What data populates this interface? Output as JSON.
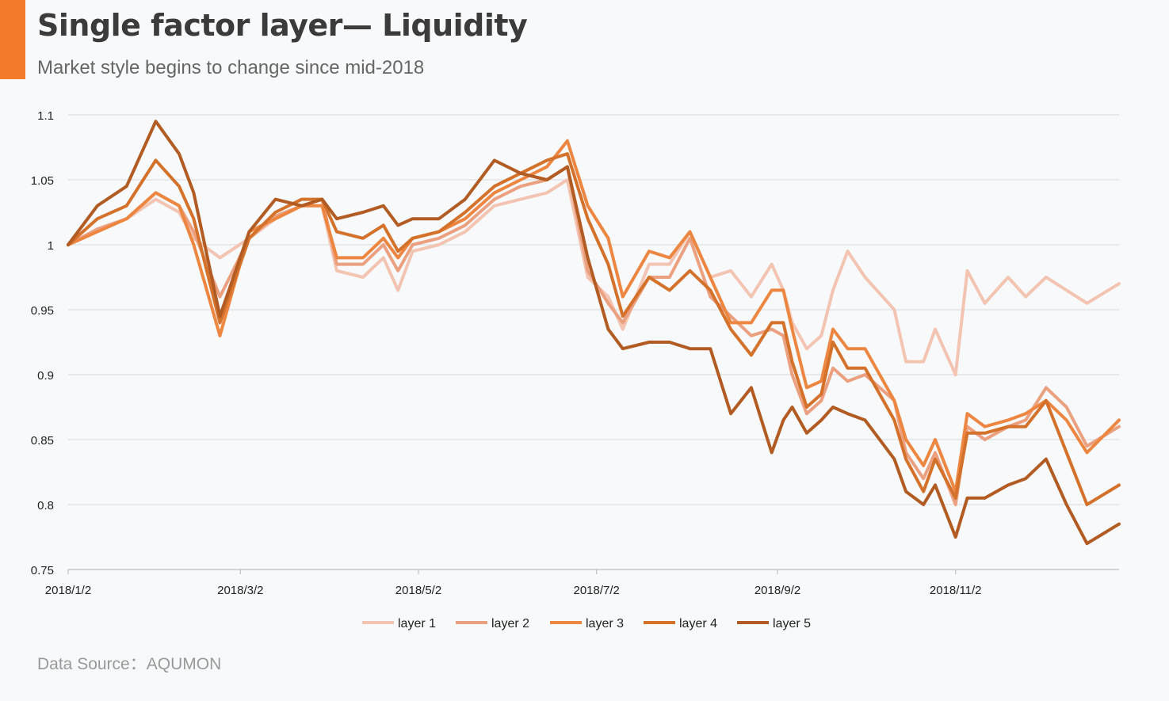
{
  "header": {
    "title": "Single factor layer— Liquidity",
    "subtitle": "Market style begins to change since mid-2018"
  },
  "footer": {
    "source": "Data Source：AQUMON"
  },
  "chart_data": {
    "type": "line",
    "title": "Single factor layer— Liquidity",
    "subtitle": "Market style begins to change since mid-2018",
    "xlabel": "",
    "ylabel": "",
    "x_range": [
      "2018-01-02",
      "2018-12-28"
    ],
    "ylim": [
      0.75,
      1.1
    ],
    "yticks": [
      0.75,
      0.8,
      0.85,
      0.9,
      0.95,
      1,
      1.05,
      1.1
    ],
    "ytick_labels": [
      "0.75",
      "0.8",
      "0.85",
      "0.9",
      "0.95",
      "1",
      "1.05",
      "1.1"
    ],
    "xticks": [
      "2018-01-02",
      "2018-03-02",
      "2018-05-02",
      "2018-07-02",
      "2018-09-02",
      "2018-11-02"
    ],
    "xtick_labels": [
      "2018/1/2",
      "2018/3/2",
      "2018/5/2",
      "2018/7/2",
      "2018/9/2",
      "2018/11/2"
    ],
    "grid": "horizontal",
    "legend": "bottom",
    "series": [
      {
        "name": "layer 1",
        "color": "#f3c4b2",
        "points": [
          [
            "2018-01-02",
            1.0
          ],
          [
            "2018-01-12",
            1.012
          ],
          [
            "2018-01-22",
            1.02
          ],
          [
            "2018-02-01",
            1.035
          ],
          [
            "2018-02-09",
            1.025
          ],
          [
            "2018-02-14",
            1.005
          ],
          [
            "2018-02-23",
            0.99
          ],
          [
            "2018-03-05",
            1.005
          ],
          [
            "2018-03-14",
            1.02
          ],
          [
            "2018-03-23",
            1.03
          ],
          [
            "2018-03-30",
            1.03
          ],
          [
            "2018-04-04",
            0.98
          ],
          [
            "2018-04-13",
            0.975
          ],
          [
            "2018-04-20",
            0.99
          ],
          [
            "2018-04-25",
            0.965
          ],
          [
            "2018-04-30",
            0.995
          ],
          [
            "2018-05-09",
            1.0
          ],
          [
            "2018-05-18",
            1.01
          ],
          [
            "2018-05-28",
            1.03
          ],
          [
            "2018-06-06",
            1.035
          ],
          [
            "2018-06-15",
            1.04
          ],
          [
            "2018-06-22",
            1.05
          ],
          [
            "2018-06-29",
            0.975
          ],
          [
            "2018-07-06",
            0.96
          ],
          [
            "2018-07-11",
            0.935
          ],
          [
            "2018-07-20",
            0.985
          ],
          [
            "2018-07-27",
            0.985
          ],
          [
            "2018-08-03",
            1.01
          ],
          [
            "2018-08-10",
            0.975
          ],
          [
            "2018-08-17",
            0.98
          ],
          [
            "2018-08-24",
            0.96
          ],
          [
            "2018-08-31",
            0.985
          ],
          [
            "2018-09-04",
            0.965
          ],
          [
            "2018-09-07",
            0.94
          ],
          [
            "2018-09-12",
            0.92
          ],
          [
            "2018-09-17",
            0.93
          ],
          [
            "2018-09-21",
            0.965
          ],
          [
            "2018-09-26",
            0.995
          ],
          [
            "2018-10-02",
            0.975
          ],
          [
            "2018-10-12",
            0.95
          ],
          [
            "2018-10-16",
            0.91
          ],
          [
            "2018-10-22",
            0.91
          ],
          [
            "2018-10-26",
            0.935
          ],
          [
            "2018-11-02",
            0.9
          ],
          [
            "2018-11-06",
            0.98
          ],
          [
            "2018-11-12",
            0.955
          ],
          [
            "2018-11-20",
            0.975
          ],
          [
            "2018-11-26",
            0.96
          ],
          [
            "2018-12-03",
            0.975
          ],
          [
            "2018-12-10",
            0.965
          ],
          [
            "2018-12-17",
            0.955
          ],
          [
            "2018-12-28",
            0.97
          ]
        ]
      },
      {
        "name": "layer 2",
        "color": "#eba080",
        "points": [
          [
            "2018-01-02",
            1.0
          ],
          [
            "2018-01-12",
            1.012
          ],
          [
            "2018-01-22",
            1.02
          ],
          [
            "2018-02-01",
            1.04
          ],
          [
            "2018-02-09",
            1.03
          ],
          [
            "2018-02-14",
            1.01
          ],
          [
            "2018-02-23",
            0.96
          ],
          [
            "2018-03-05",
            1.005
          ],
          [
            "2018-03-14",
            1.022
          ],
          [
            "2018-03-23",
            1.03
          ],
          [
            "2018-03-30",
            1.035
          ],
          [
            "2018-04-04",
            0.985
          ],
          [
            "2018-04-13",
            0.985
          ],
          [
            "2018-04-20",
            1.0
          ],
          [
            "2018-04-25",
            0.98
          ],
          [
            "2018-04-30",
            1.0
          ],
          [
            "2018-05-09",
            1.005
          ],
          [
            "2018-05-18",
            1.015
          ],
          [
            "2018-05-28",
            1.035
          ],
          [
            "2018-06-06",
            1.045
          ],
          [
            "2018-06-15",
            1.05
          ],
          [
            "2018-06-22",
            1.06
          ],
          [
            "2018-06-29",
            0.98
          ],
          [
            "2018-07-06",
            0.955
          ],
          [
            "2018-07-11",
            0.94
          ],
          [
            "2018-07-20",
            0.975
          ],
          [
            "2018-07-27",
            0.975
          ],
          [
            "2018-08-03",
            1.005
          ],
          [
            "2018-08-10",
            0.96
          ],
          [
            "2018-08-17",
            0.945
          ],
          [
            "2018-08-24",
            0.93
          ],
          [
            "2018-08-31",
            0.935
          ],
          [
            "2018-09-04",
            0.93
          ],
          [
            "2018-09-07",
            0.9
          ],
          [
            "2018-09-12",
            0.87
          ],
          [
            "2018-09-17",
            0.88
          ],
          [
            "2018-09-21",
            0.905
          ],
          [
            "2018-09-26",
            0.895
          ],
          [
            "2018-10-02",
            0.9
          ],
          [
            "2018-10-12",
            0.88
          ],
          [
            "2018-10-16",
            0.84
          ],
          [
            "2018-10-22",
            0.82
          ],
          [
            "2018-10-26",
            0.84
          ],
          [
            "2018-11-02",
            0.8
          ],
          [
            "2018-11-06",
            0.86
          ],
          [
            "2018-11-12",
            0.85
          ],
          [
            "2018-11-20",
            0.86
          ],
          [
            "2018-11-26",
            0.865
          ],
          [
            "2018-12-03",
            0.89
          ],
          [
            "2018-12-10",
            0.875
          ],
          [
            "2018-12-17",
            0.845
          ],
          [
            "2018-12-28",
            0.86
          ]
        ]
      },
      {
        "name": "layer 3",
        "color": "#ed8640",
        "points": [
          [
            "2018-01-02",
            1.0
          ],
          [
            "2018-01-12",
            1.01
          ],
          [
            "2018-01-22",
            1.02
          ],
          [
            "2018-02-01",
            1.04
          ],
          [
            "2018-02-09",
            1.03
          ],
          [
            "2018-02-14",
            1.0
          ],
          [
            "2018-02-23",
            0.93
          ],
          [
            "2018-03-05",
            1.01
          ],
          [
            "2018-03-14",
            1.02
          ],
          [
            "2018-03-23",
            1.03
          ],
          [
            "2018-03-30",
            1.03
          ],
          [
            "2018-04-04",
            0.99
          ],
          [
            "2018-04-13",
            0.99
          ],
          [
            "2018-04-20",
            1.005
          ],
          [
            "2018-04-25",
            0.99
          ],
          [
            "2018-04-30",
            1.005
          ],
          [
            "2018-05-09",
            1.01
          ],
          [
            "2018-05-18",
            1.02
          ],
          [
            "2018-05-28",
            1.04
          ],
          [
            "2018-06-06",
            1.05
          ],
          [
            "2018-06-15",
            1.06
          ],
          [
            "2018-06-22",
            1.08
          ],
          [
            "2018-06-29",
            1.03
          ],
          [
            "2018-07-06",
            1.005
          ],
          [
            "2018-07-11",
            0.96
          ],
          [
            "2018-07-20",
            0.995
          ],
          [
            "2018-07-27",
            0.99
          ],
          [
            "2018-08-03",
            1.01
          ],
          [
            "2018-08-10",
            0.975
          ],
          [
            "2018-08-17",
            0.94
          ],
          [
            "2018-08-24",
            0.94
          ],
          [
            "2018-08-31",
            0.965
          ],
          [
            "2018-09-04",
            0.965
          ],
          [
            "2018-09-07",
            0.935
          ],
          [
            "2018-09-12",
            0.89
          ],
          [
            "2018-09-17",
            0.895
          ],
          [
            "2018-09-21",
            0.935
          ],
          [
            "2018-09-26",
            0.92
          ],
          [
            "2018-10-02",
            0.92
          ],
          [
            "2018-10-12",
            0.88
          ],
          [
            "2018-10-16",
            0.85
          ],
          [
            "2018-10-22",
            0.83
          ],
          [
            "2018-10-26",
            0.85
          ],
          [
            "2018-11-02",
            0.81
          ],
          [
            "2018-11-06",
            0.87
          ],
          [
            "2018-11-12",
            0.86
          ],
          [
            "2018-11-20",
            0.865
          ],
          [
            "2018-11-26",
            0.87
          ],
          [
            "2018-12-03",
            0.88
          ],
          [
            "2018-12-10",
            0.865
          ],
          [
            "2018-12-17",
            0.84
          ],
          [
            "2018-12-28",
            0.865
          ]
        ]
      },
      {
        "name": "layer 4",
        "color": "#d4712a",
        "points": [
          [
            "2018-01-02",
            1.0
          ],
          [
            "2018-01-12",
            1.02
          ],
          [
            "2018-01-22",
            1.03
          ],
          [
            "2018-02-01",
            1.065
          ],
          [
            "2018-02-09",
            1.045
          ],
          [
            "2018-02-14",
            1.02
          ],
          [
            "2018-02-23",
            0.94
          ],
          [
            "2018-03-05",
            1.005
          ],
          [
            "2018-03-14",
            1.025
          ],
          [
            "2018-03-23",
            1.035
          ],
          [
            "2018-03-30",
            1.035
          ],
          [
            "2018-04-04",
            1.01
          ],
          [
            "2018-04-13",
            1.005
          ],
          [
            "2018-04-20",
            1.015
          ],
          [
            "2018-04-25",
            0.995
          ],
          [
            "2018-04-30",
            1.005
          ],
          [
            "2018-05-09",
            1.01
          ],
          [
            "2018-05-18",
            1.025
          ],
          [
            "2018-05-28",
            1.045
          ],
          [
            "2018-06-06",
            1.055
          ],
          [
            "2018-06-15",
            1.065
          ],
          [
            "2018-06-22",
            1.07
          ],
          [
            "2018-06-29",
            1.02
          ],
          [
            "2018-07-06",
            0.985
          ],
          [
            "2018-07-11",
            0.945
          ],
          [
            "2018-07-20",
            0.975
          ],
          [
            "2018-07-27",
            0.965
          ],
          [
            "2018-08-03",
            0.98
          ],
          [
            "2018-08-10",
            0.965
          ],
          [
            "2018-08-17",
            0.935
          ],
          [
            "2018-08-24",
            0.915
          ],
          [
            "2018-08-31",
            0.94
          ],
          [
            "2018-09-04",
            0.94
          ],
          [
            "2018-09-07",
            0.91
          ],
          [
            "2018-09-12",
            0.875
          ],
          [
            "2018-09-17",
            0.885
          ],
          [
            "2018-09-21",
            0.925
          ],
          [
            "2018-09-26",
            0.905
          ],
          [
            "2018-10-02",
            0.905
          ],
          [
            "2018-10-12",
            0.865
          ],
          [
            "2018-10-16",
            0.835
          ],
          [
            "2018-10-22",
            0.81
          ],
          [
            "2018-10-26",
            0.835
          ],
          [
            "2018-11-02",
            0.805
          ],
          [
            "2018-11-06",
            0.855
          ],
          [
            "2018-11-12",
            0.855
          ],
          [
            "2018-11-20",
            0.86
          ],
          [
            "2018-11-26",
            0.86
          ],
          [
            "2018-12-03",
            0.88
          ],
          [
            "2018-12-10",
            0.84
          ],
          [
            "2018-12-17",
            0.8
          ],
          [
            "2018-12-28",
            0.815
          ]
        ]
      },
      {
        "name": "layer 5",
        "color": "#b25b22",
        "points": [
          [
            "2018-01-02",
            1.0
          ],
          [
            "2018-01-12",
            1.03
          ],
          [
            "2018-01-22",
            1.045
          ],
          [
            "2018-02-01",
            1.095
          ],
          [
            "2018-02-09",
            1.07
          ],
          [
            "2018-02-14",
            1.04
          ],
          [
            "2018-02-23",
            0.945
          ],
          [
            "2018-03-05",
            1.01
          ],
          [
            "2018-03-14",
            1.035
          ],
          [
            "2018-03-23",
            1.03
          ],
          [
            "2018-03-30",
            1.035
          ],
          [
            "2018-04-04",
            1.02
          ],
          [
            "2018-04-13",
            1.025
          ],
          [
            "2018-04-20",
            1.03
          ],
          [
            "2018-04-25",
            1.015
          ],
          [
            "2018-04-30",
            1.02
          ],
          [
            "2018-05-09",
            1.02
          ],
          [
            "2018-05-18",
            1.035
          ],
          [
            "2018-05-28",
            1.065
          ],
          [
            "2018-06-06",
            1.055
          ],
          [
            "2018-06-15",
            1.05
          ],
          [
            "2018-06-22",
            1.06
          ],
          [
            "2018-06-29",
            0.99
          ],
          [
            "2018-07-06",
            0.935
          ],
          [
            "2018-07-11",
            0.92
          ],
          [
            "2018-07-20",
            0.925
          ],
          [
            "2018-07-27",
            0.925
          ],
          [
            "2018-08-03",
            0.92
          ],
          [
            "2018-08-10",
            0.92
          ],
          [
            "2018-08-17",
            0.87
          ],
          [
            "2018-08-24",
            0.89
          ],
          [
            "2018-08-31",
            0.84
          ],
          [
            "2018-09-04",
            0.865
          ],
          [
            "2018-09-07",
            0.875
          ],
          [
            "2018-09-12",
            0.855
          ],
          [
            "2018-09-17",
            0.865
          ],
          [
            "2018-09-21",
            0.875
          ],
          [
            "2018-09-26",
            0.87
          ],
          [
            "2018-10-02",
            0.865
          ],
          [
            "2018-10-12",
            0.835
          ],
          [
            "2018-10-16",
            0.81
          ],
          [
            "2018-10-22",
            0.8
          ],
          [
            "2018-10-26",
            0.815
          ],
          [
            "2018-11-02",
            0.775
          ],
          [
            "2018-11-06",
            0.805
          ],
          [
            "2018-11-12",
            0.805
          ],
          [
            "2018-11-20",
            0.815
          ],
          [
            "2018-11-26",
            0.82
          ],
          [
            "2018-12-03",
            0.835
          ],
          [
            "2018-12-10",
            0.8
          ],
          [
            "2018-12-17",
            0.77
          ],
          [
            "2018-12-28",
            0.785
          ]
        ]
      }
    ]
  }
}
